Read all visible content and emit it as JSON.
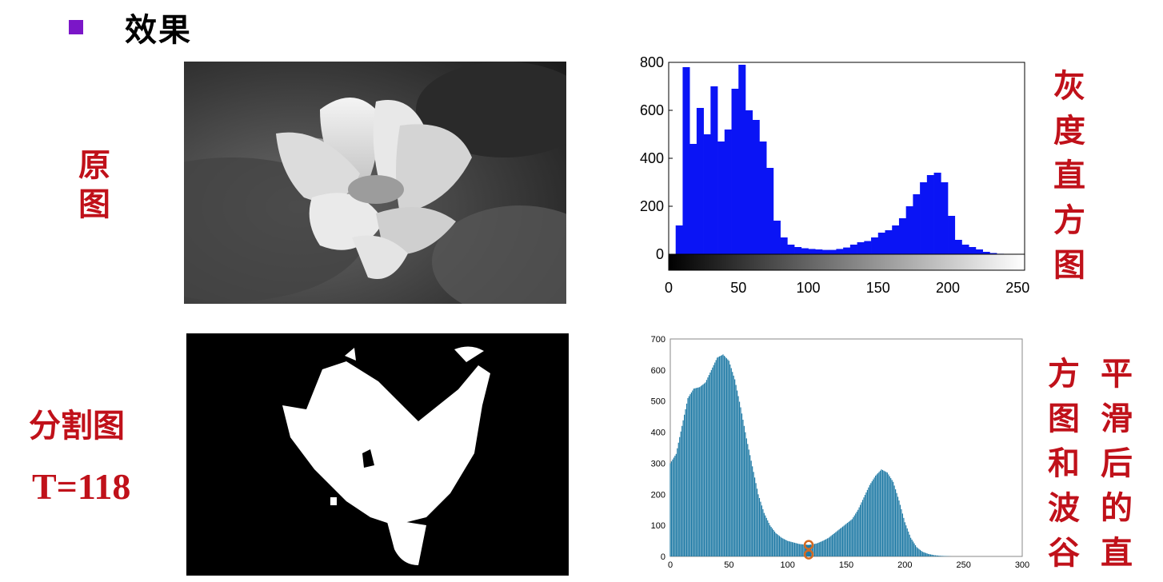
{
  "title": "效果",
  "labels": {
    "original": [
      "原",
      "图"
    ],
    "segmented": "分割图",
    "threshold": "T=118",
    "histogram": [
      "灰",
      "度",
      "直",
      "方",
      "图"
    ],
    "smoothed_col1": [
      "平",
      "滑",
      "后",
      "的",
      "直"
    ],
    "smoothed_col2": [
      "方",
      "图",
      "和",
      "波",
      "谷"
    ]
  },
  "colors": {
    "accent_red": "#c0111a",
    "bullet_purple": "#7b16c8",
    "hist_blue": "#0a14f5",
    "smooth_bar": "#1f7aa5",
    "valley_marker": "#d46a22"
  },
  "chart_data": [
    {
      "type": "bar",
      "title": "",
      "xlabel": "",
      "ylabel": "",
      "xlim": [
        0,
        255
      ],
      "ylim": [
        0,
        800
      ],
      "xticks": [
        0,
        50,
        100,
        150,
        200,
        250
      ],
      "yticks": [
        0,
        200,
        400,
        600,
        800
      ],
      "colorbar": "gray",
      "x": [
        0,
        5,
        10,
        15,
        20,
        25,
        30,
        35,
        40,
        45,
        50,
        55,
        60,
        65,
        70,
        75,
        80,
        85,
        90,
        95,
        100,
        105,
        110,
        115,
        120,
        125,
        130,
        135,
        140,
        145,
        150,
        155,
        160,
        165,
        170,
        175,
        180,
        185,
        190,
        195,
        200,
        205,
        210,
        215,
        220,
        225,
        230,
        235,
        240,
        245,
        250,
        255
      ],
      "values": [
        0,
        120,
        780,
        460,
        610,
        500,
        700,
        470,
        520,
        690,
        790,
        600,
        560,
        470,
        360,
        140,
        70,
        40,
        30,
        25,
        22,
        20,
        18,
        18,
        22,
        28,
        40,
        50,
        55,
        70,
        90,
        100,
        120,
        150,
        200,
        250,
        300,
        330,
        340,
        300,
        160,
        60,
        40,
        30,
        20,
        10,
        5,
        2,
        0,
        0,
        0,
        0
      ]
    },
    {
      "type": "bar",
      "title": "",
      "xlabel": "",
      "ylabel": "",
      "xlim": [
        0,
        300
      ],
      "ylim": [
        0,
        700
      ],
      "xticks": [
        0,
        50,
        100,
        150,
        200,
        250,
        300
      ],
      "yticks": [
        0,
        100,
        200,
        300,
        400,
        500,
        600,
        700
      ],
      "x": [
        0,
        5,
        10,
        15,
        20,
        25,
        30,
        35,
        40,
        45,
        50,
        55,
        60,
        65,
        70,
        75,
        80,
        85,
        90,
        95,
        100,
        105,
        110,
        115,
        118,
        120,
        125,
        130,
        135,
        140,
        145,
        150,
        155,
        160,
        165,
        170,
        175,
        180,
        185,
        190,
        195,
        200,
        205,
        210,
        215,
        220,
        225,
        230,
        235,
        240,
        245,
        250,
        255
      ],
      "values": [
        300,
        330,
        420,
        510,
        540,
        545,
        560,
        600,
        640,
        650,
        630,
        570,
        480,
        380,
        290,
        200,
        140,
        100,
        75,
        60,
        50,
        45,
        40,
        38,
        37,
        38,
        42,
        50,
        60,
        75,
        90,
        105,
        120,
        150,
        190,
        230,
        260,
        280,
        270,
        240,
        180,
        110,
        60,
        30,
        15,
        8,
        4,
        2,
        1,
        0,
        0,
        0,
        0
      ],
      "valley": {
        "x": 118,
        "y": 37
      }
    }
  ]
}
